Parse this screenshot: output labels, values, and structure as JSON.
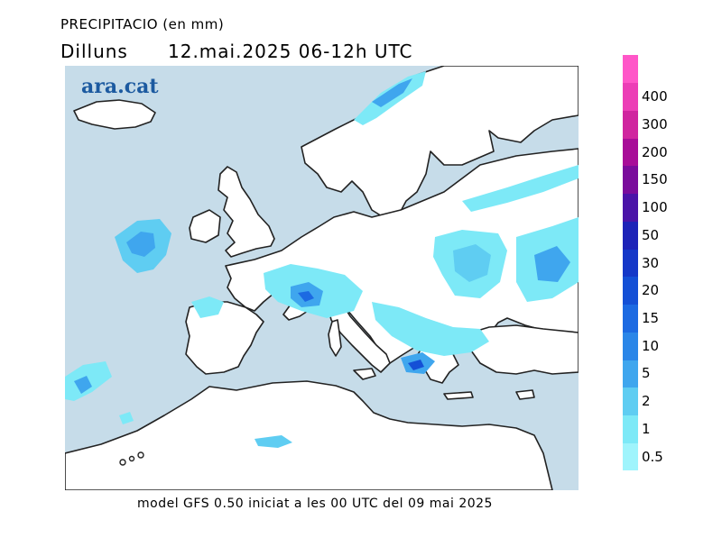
{
  "title": "PRECIPITACIO (en mm)",
  "day": "Dilluns",
  "date": "12.mai.2025",
  "period": "06-12h UTC",
  "logo": "ara.cat",
  "footer": "model GFS 0.50 iniciat a les 00 UTC del 09 mai 2025",
  "colors": {
    "sea": "#c6dce9",
    "land": "#ffffff",
    "coast": "#222222"
  },
  "legend": [
    {
      "label": "0.5",
      "color": "#9ff4fc"
    },
    {
      "label": "1",
      "color": "#7de9f7"
    },
    {
      "label": "2",
      "color": "#5fcdf2"
    },
    {
      "label": "5",
      "color": "#3fa6ee"
    },
    {
      "label": "10",
      "color": "#2a86e8"
    },
    {
      "label": "15",
      "color": "#1c6ae2"
    },
    {
      "label": "20",
      "color": "#1450d6"
    },
    {
      "label": "30",
      "color": "#1538c8"
    },
    {
      "label": "50",
      "color": "#1d23b8"
    },
    {
      "label": "100",
      "color": "#4a14a8"
    },
    {
      "label": "150",
      "color": "#7a0c9c"
    },
    {
      "label": "200",
      "color": "#a80d98"
    },
    {
      "label": "300",
      "color": "#d0259f"
    },
    {
      "label": "400",
      "color": "#ec3eb6"
    },
    {
      "label": "",
      "color": "#ff56c8"
    }
  ]
}
